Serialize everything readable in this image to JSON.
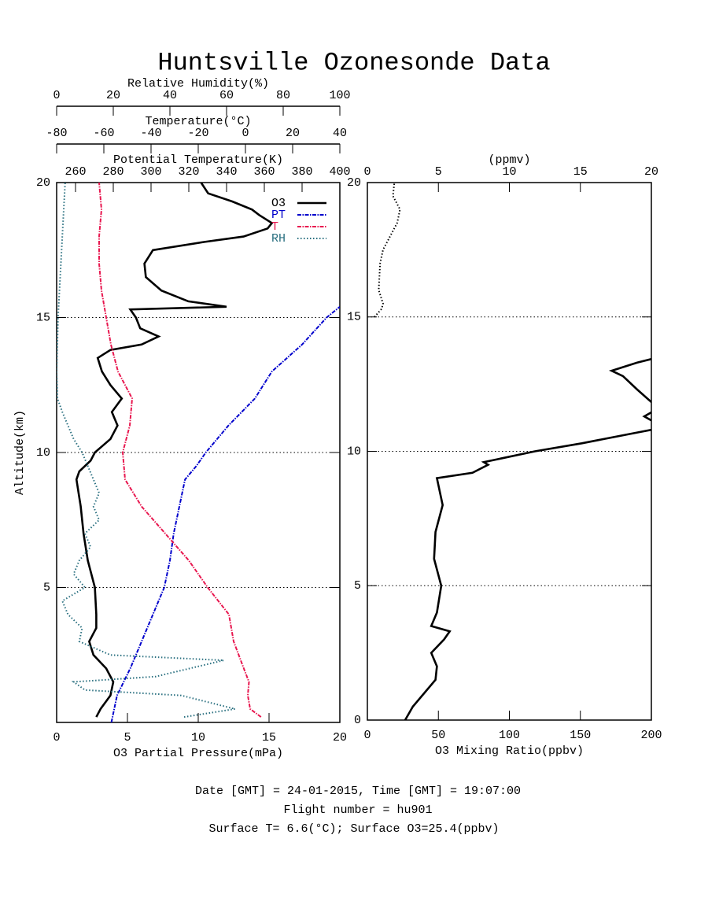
{
  "title": "Huntsville Ozonesonde Data",
  "footer": [
    "Date [GMT] = 24-01-2015,  Time [GMT] = 19:07:00",
    "Flight number = hu901",
    "Surface T= 6.6(°C); Surface O3=25.4(ppbv)"
  ],
  "chart_data": [
    {
      "type": "line",
      "xlabel": "O3 Partial Pressure(mPa)",
      "ylabel": "Altitude(km)",
      "xlim": [
        0,
        20
      ],
      "xticks": [
        0,
        5,
        10,
        15,
        20
      ],
      "ylim": [
        0,
        20
      ],
      "yticks": [
        5,
        10,
        15,
        20
      ],
      "grid": true,
      "legend": "upper right",
      "x2label": "Relative Humidity(%)",
      "x2lim": [
        0,
        100
      ],
      "x2ticks": [
        0,
        20,
        40,
        60,
        80,
        100
      ],
      "x3label": "Temperature(°C)",
      "x3lim": [
        -80,
        40
      ],
      "x3ticks": [
        -80,
        -60,
        -40,
        -20,
        0,
        20,
        40
      ],
      "x4label": "Potential Temperature(K)",
      "x4lim": [
        250,
        400
      ],
      "x4ticks": [
        260,
        280,
        300,
        320,
        340,
        360,
        380,
        400
      ],
      "series": [
        {
          "name": "O3",
          "color": "#000000",
          "style": "solid",
          "y": [
            0.2,
            0.5,
            1,
            1.5,
            2,
            2.5,
            3,
            3.3,
            3.5,
            4,
            5,
            6,
            7,
            8,
            9,
            9.3,
            9.7,
            10,
            10.5,
            11,
            11.5,
            12,
            12.5,
            13,
            13.5,
            13.8,
            14,
            14.3,
            14.6,
            15,
            15.3,
            15.4,
            15.6,
            16,
            16.5,
            17,
            17.5,
            17.8,
            18,
            18.3,
            18.5,
            18.8,
            19,
            19.3,
            19.6,
            20
          ],
          "values": [
            2.8,
            3.1,
            3.8,
            4.0,
            3.5,
            2.6,
            2.3,
            2.6,
            2.8,
            2.8,
            2.7,
            2.2,
            1.9,
            1.7,
            1.4,
            1.6,
            2.4,
            2.7,
            3.8,
            4.3,
            3.9,
            4.6,
            3.8,
            3.2,
            2.9,
            3.8,
            6.0,
            7.2,
            5.9,
            5.6,
            5.2,
            12.0,
            9.3,
            7.4,
            6.3,
            6.2,
            6.8,
            10.4,
            13.2,
            14.9,
            15.2,
            14.3,
            13.8,
            12.4,
            10.7,
            10.2
          ]
        },
        {
          "name": "PT",
          "color": "#0000cc",
          "style": "dashdot",
          "axis": "x4",
          "y": [
            0,
            1,
            2,
            3,
            4,
            5,
            6,
            7,
            8,
            9,
            9.5,
            10,
            11,
            12,
            13,
            14,
            15,
            15.4
          ],
          "values": [
            279,
            282,
            289,
            295,
            301,
            307,
            310,
            312,
            315,
            318,
            324,
            329,
            341,
            355,
            364,
            380,
            393,
            400
          ]
        },
        {
          "name": "T",
          "color": "#e8174f",
          "style": "dashdot",
          "axis": "x3",
          "y": [
            0.2,
            0.5,
            1,
            1.5,
            2,
            3,
            4,
            5,
            6,
            7,
            8,
            9,
            10,
            11,
            12,
            12.5,
            13,
            14,
            15,
            16,
            17,
            18,
            19,
            20
          ],
          "values": [
            6.6,
            2,
            1,
            1.5,
            -0.7,
            -5,
            -7,
            -16,
            -24,
            -34,
            -44,
            -51,
            -52,
            -49,
            -48,
            -51,
            -54,
            -57,
            -59,
            -61,
            -62,
            -62,
            -61,
            -62
          ]
        },
        {
          "name": "RH",
          "color": "#2a7080",
          "style": "dotted",
          "axis": "x2",
          "y": [
            0.2,
            0.5,
            1,
            1.2,
            1.5,
            1.7,
            2,
            2.3,
            2.5,
            3,
            3.5,
            4,
            4.5,
            5,
            5.5,
            6,
            6.5,
            7,
            7.5,
            8,
            8.5,
            9,
            9.5,
            10,
            10.5,
            11,
            11.5,
            12,
            13,
            15,
            18,
            20
          ],
          "values": [
            45,
            63,
            44,
            10,
            6,
            35,
            47,
            59,
            19,
            8,
            9,
            4,
            2,
            10,
            6,
            8,
            12,
            10,
            15,
            13,
            15,
            13,
            11,
            9,
            6,
            4,
            2,
            0.3,
            0,
            0.5,
            2,
            3
          ]
        }
      ]
    },
    {
      "type": "line",
      "xlabel": "O3 Mixing Ratio(ppbv)",
      "xlim": [
        0,
        200
      ],
      "xticks": [
        0,
        50,
        100,
        150,
        200
      ],
      "ylim": [
        0,
        20
      ],
      "yticks": [
        0,
        5,
        10,
        15,
        20
      ],
      "grid": true,
      "x2label": "(ppmv)",
      "x2lim": [
        0,
        20
      ],
      "x2ticks": [
        0,
        5,
        10,
        15,
        20
      ],
      "series": [
        {
          "color": "#000000",
          "style": "solid",
          "y": [
            0,
            0.5,
            1,
            1.5,
            2,
            2.5,
            3,
            3.3,
            3.5,
            4,
            5,
            6,
            7,
            8,
            9,
            9.2,
            9.5,
            9.6,
            10,
            10.3,
            10.7,
            10.8,
            11,
            11.3,
            11.6,
            12.3,
            12.8,
            13,
            13.3,
            13.5
          ],
          "values": [
            26.6,
            32,
            40,
            48,
            49,
            45,
            54,
            58,
            45,
            49,
            52,
            47,
            48,
            53,
            49,
            74,
            85,
            82,
            118,
            151,
            190,
            200,
            205,
            195,
            205,
            190,
            180,
            172,
            190,
            205
          ]
        },
        {
          "color": "#000000",
          "style": "dotted",
          "axis": "x2",
          "y": [
            15,
            15.3,
            15.5,
            16,
            17,
            17.5,
            18,
            18.5,
            19,
            19.5,
            20
          ],
          "values": [
            0.5,
            1,
            1.1,
            0.8,
            0.9,
            1.1,
            1.6,
            2.1,
            2.3,
            1.8,
            1.9
          ]
        }
      ]
    }
  ]
}
